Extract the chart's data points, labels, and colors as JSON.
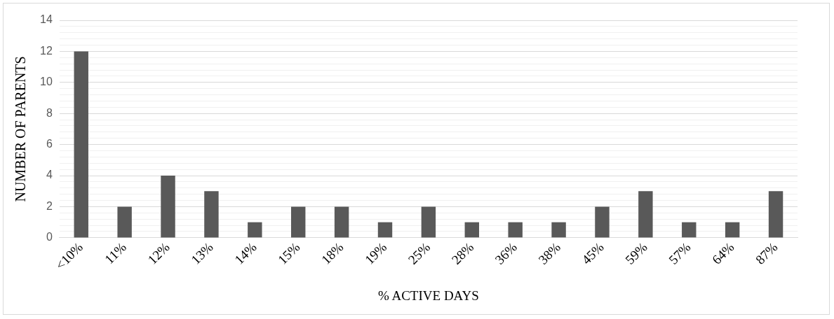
{
  "chart_data": {
    "type": "bar",
    "xlabel": "% ACTIVE DAYS",
    "ylabel": "NUMBER OF PARENTS",
    "categories": [
      "<10%",
      "11%",
      "12%",
      "13%",
      "14%",
      "15%",
      "18%",
      "19%",
      "25%",
      "28%",
      "36%",
      "38%",
      "45%",
      "59%",
      "57%",
      "64%",
      "87%"
    ],
    "values": [
      12,
      2,
      4,
      3,
      1,
      2,
      2,
      1,
      2,
      1,
      1,
      1,
      2,
      3,
      1,
      1,
      3
    ],
    "color": "#595959",
    "ylim": [
      0,
      14
    ],
    "yticks": [
      0,
      {
        "value": 0.4,
        "label": null
      },
      {
        "value": 0.8,
        "label": null
      },
      {
        "value": 1.2,
        "label": null
      },
      {
        "value": 1.6,
        "label": null
      },
      2,
      {
        "value": 2.4,
        "label": null
      },
      {
        "value": 2.8,
        "label": null
      },
      {
        "value": 3.2,
        "label": null
      },
      {
        "value": 3.6,
        "label": null
      },
      4,
      {
        "value": 4.4,
        "label": null
      },
      {
        "value": 4.8,
        "label": null
      },
      {
        "value": 5.2,
        "label": null
      },
      {
        "value": 5.6,
        "label": null
      },
      6,
      {
        "value": 6.4,
        "label": null
      },
      {
        "value": 6.8,
        "label": null
      },
      {
        "value": 7.2,
        "label": null
      },
      {
        "value": 7.6,
        "label": null
      },
      8,
      {
        "value": 8.4,
        "label": null
      },
      {
        "value": 8.8,
        "label": null
      },
      {
        "value": 9.2,
        "label": null
      },
      {
        "value": 9.6,
        "label": null
      },
      10,
      {
        "value": 10.4,
        "label": null
      },
      {
        "value": 10.8,
        "label": null
      },
      {
        "value": 11.2,
        "label": null
      },
      {
        "value": 11.6,
        "label": null
      },
      12,
      {
        "value": 12.4,
        "label": null
      },
      {
        "value": 12.8,
        "label": null
      },
      {
        "value": 13.2,
        "label": null
      },
      {
        "value": 13.6,
        "label": null
      },
      14
    ],
    "grid": "y",
    "legend": false
  }
}
